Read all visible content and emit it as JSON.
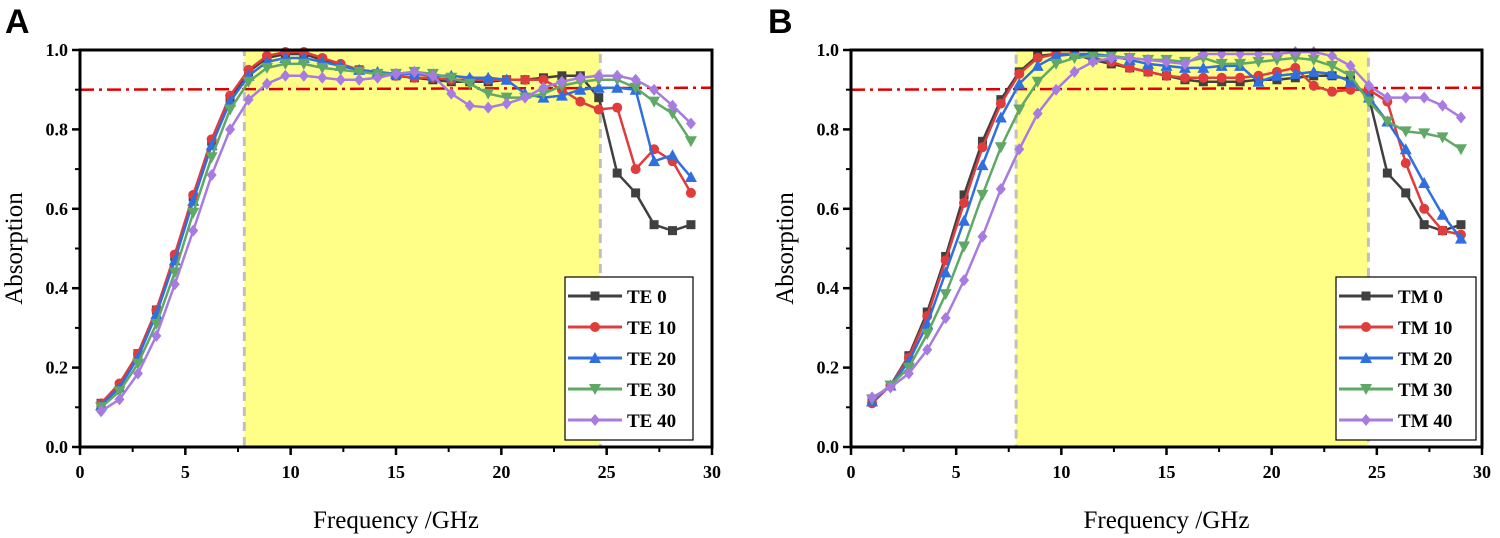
{
  "chart_data": [
    {
      "type": "line",
      "panel_label": "A",
      "xlabel": "Frequency /GHz",
      "ylabel": "Absorption",
      "xlim": [
        0,
        30
      ],
      "ylim": [
        0,
        1.0
      ],
      "xticks": [
        "0",
        "5",
        "10",
        "15",
        "20",
        "25",
        "30"
      ],
      "yticks": [
        "0.0",
        "0.2",
        "0.4",
        "0.6",
        "0.8",
        "1.0"
      ],
      "threshold": 0.9,
      "band": [
        7.8,
        24.7
      ],
      "legend_position": "bottom-right",
      "x": [
        1,
        1.875,
        2.75,
        3.625,
        4.5,
        5.375,
        6.25,
        7.125,
        8,
        8.875,
        9.75,
        10.625,
        11.5,
        12.375,
        13.25,
        14.125,
        15,
        15.875,
        16.75,
        17.625,
        18.5,
        19.375,
        20.25,
        21.125,
        22,
        22.875,
        23.75,
        24.625,
        25.5,
        26.375,
        27.25,
        28.125,
        29
      ],
      "series": [
        {
          "name": "TE 0",
          "color": "#404040",
          "marker": "square",
          "values": [
            0.11,
            0.155,
            0.235,
            0.345,
            0.48,
            0.63,
            0.77,
            0.875,
            0.945,
            0.98,
            0.99,
            0.99,
            0.975,
            0.96,
            0.95,
            0.94,
            0.935,
            0.93,
            0.925,
            0.92,
            0.92,
            0.92,
            0.925,
            0.925,
            0.93,
            0.935,
            0.935,
            0.88,
            0.69,
            0.64,
            0.56,
            0.545,
            0.56
          ]
        },
        {
          "name": "TE 10",
          "color": "#e03c3c",
          "marker": "circle",
          "values": [
            0.11,
            0.16,
            0.235,
            0.345,
            0.485,
            0.635,
            0.775,
            0.885,
            0.95,
            0.985,
            0.995,
            0.995,
            0.98,
            0.965,
            0.95,
            0.94,
            0.935,
            0.93,
            0.93,
            0.925,
            0.925,
            0.925,
            0.925,
            0.925,
            0.925,
            0.9,
            0.87,
            0.85,
            0.855,
            0.7,
            0.75,
            0.72,
            0.64
          ]
        },
        {
          "name": "TE 20",
          "color": "#2f6fe0",
          "marker": "triangle-up",
          "values": [
            0.105,
            0.15,
            0.225,
            0.335,
            0.47,
            0.62,
            0.76,
            0.87,
            0.935,
            0.97,
            0.98,
            0.98,
            0.97,
            0.96,
            0.95,
            0.945,
            0.94,
            0.94,
            0.935,
            0.935,
            0.93,
            0.93,
            0.925,
            0.89,
            0.88,
            0.885,
            0.9,
            0.905,
            0.905,
            0.9,
            0.72,
            0.735,
            0.68
          ]
        },
        {
          "name": "TE 30",
          "color": "#5fa866",
          "marker": "triangle-down",
          "values": [
            0.1,
            0.14,
            0.21,
            0.31,
            0.44,
            0.59,
            0.73,
            0.85,
            0.92,
            0.955,
            0.965,
            0.965,
            0.955,
            0.95,
            0.945,
            0.94,
            0.94,
            0.945,
            0.94,
            0.93,
            0.915,
            0.89,
            0.88,
            0.88,
            0.89,
            0.91,
            0.92,
            0.925,
            0.925,
            0.905,
            0.87,
            0.84,
            0.77
          ]
        },
        {
          "name": "TE 40",
          "color": "#a77be0",
          "marker": "diamond",
          "values": [
            0.09,
            0.12,
            0.185,
            0.28,
            0.41,
            0.545,
            0.685,
            0.8,
            0.875,
            0.915,
            0.935,
            0.935,
            0.93,
            0.925,
            0.925,
            0.93,
            0.94,
            0.945,
            0.935,
            0.89,
            0.86,
            0.855,
            0.865,
            0.88,
            0.905,
            0.92,
            0.93,
            0.935,
            0.935,
            0.925,
            0.9,
            0.86,
            0.815
          ]
        }
      ]
    },
    {
      "type": "line",
      "panel_label": "B",
      "xlabel": "Frequency /GHz",
      "ylabel": "Absorption",
      "xlim": [
        0,
        30
      ],
      "ylim": [
        0,
        1.0
      ],
      "xticks": [
        "0",
        "5",
        "10",
        "15",
        "20",
        "25",
        "30"
      ],
      "yticks": [
        "0.0",
        "0.2",
        "0.4",
        "0.6",
        "0.8",
        "1.0"
      ],
      "threshold": 0.9,
      "band": [
        7.85,
        24.6
      ],
      "legend_position": "bottom-right",
      "x": [
        1,
        1.875,
        2.75,
        3.625,
        4.5,
        5.375,
        6.25,
        7.125,
        8,
        8.875,
        9.75,
        10.625,
        11.5,
        12.375,
        13.25,
        14.125,
        15,
        15.875,
        16.75,
        17.625,
        18.5,
        19.375,
        20.25,
        21.125,
        22,
        22.875,
        23.75,
        24.625,
        25.5,
        26.375,
        27.25,
        28.125,
        29
      ],
      "series": [
        {
          "name": "TM 0",
          "color": "#404040",
          "marker": "square",
          "values": [
            0.115,
            0.155,
            0.23,
            0.34,
            0.48,
            0.635,
            0.77,
            0.875,
            0.945,
            0.985,
            0.99,
            0.99,
            0.975,
            0.965,
            0.955,
            0.945,
            0.935,
            0.925,
            0.92,
            0.92,
            0.92,
            0.925,
            0.925,
            0.93,
            0.935,
            0.935,
            0.925,
            0.88,
            0.69,
            0.64,
            0.56,
            0.545,
            0.56
          ]
        },
        {
          "name": "TM 10",
          "color": "#e03c3c",
          "marker": "circle",
          "values": [
            0.11,
            0.155,
            0.225,
            0.33,
            0.47,
            0.615,
            0.755,
            0.865,
            0.94,
            0.98,
            0.99,
            0.99,
            0.98,
            0.97,
            0.955,
            0.945,
            0.935,
            0.93,
            0.93,
            0.93,
            0.93,
            0.935,
            0.945,
            0.955,
            0.91,
            0.895,
            0.9,
            0.9,
            0.87,
            0.715,
            0.6,
            0.545,
            0.535
          ]
        },
        {
          "name": "TM 20",
          "color": "#2f6fe0",
          "marker": "triangle-up",
          "values": [
            0.115,
            0.155,
            0.215,
            0.31,
            0.44,
            0.57,
            0.71,
            0.83,
            0.915,
            0.96,
            0.985,
            0.99,
            0.99,
            0.985,
            0.975,
            0.965,
            0.96,
            0.955,
            0.955,
            0.96,
            0.96,
            0.92,
            0.935,
            0.94,
            0.945,
            0.94,
            0.92,
            0.88,
            0.82,
            0.75,
            0.665,
            0.585,
            0.525
          ]
        },
        {
          "name": "TM 30",
          "color": "#5fa866",
          "marker": "triangle-down",
          "values": [
            0.12,
            0.155,
            0.2,
            0.285,
            0.385,
            0.505,
            0.635,
            0.755,
            0.85,
            0.92,
            0.965,
            0.98,
            0.985,
            0.985,
            0.98,
            0.975,
            0.975,
            0.97,
            0.98,
            0.965,
            0.965,
            0.97,
            0.975,
            0.98,
            0.975,
            0.96,
            0.935,
            0.87,
            0.82,
            0.795,
            0.79,
            0.78,
            0.75
          ]
        },
        {
          "name": "TM 40",
          "color": "#a77be0",
          "marker": "diamond",
          "values": [
            0.125,
            0.15,
            0.185,
            0.245,
            0.325,
            0.42,
            0.53,
            0.65,
            0.75,
            0.84,
            0.9,
            0.945,
            0.97,
            0.98,
            0.98,
            0.975,
            0.97,
            0.965,
            0.99,
            0.99,
            0.99,
            0.99,
            0.99,
            0.995,
            0.995,
            0.985,
            0.96,
            0.91,
            0.88,
            0.88,
            0.88,
            0.86,
            0.83
          ]
        }
      ]
    }
  ]
}
